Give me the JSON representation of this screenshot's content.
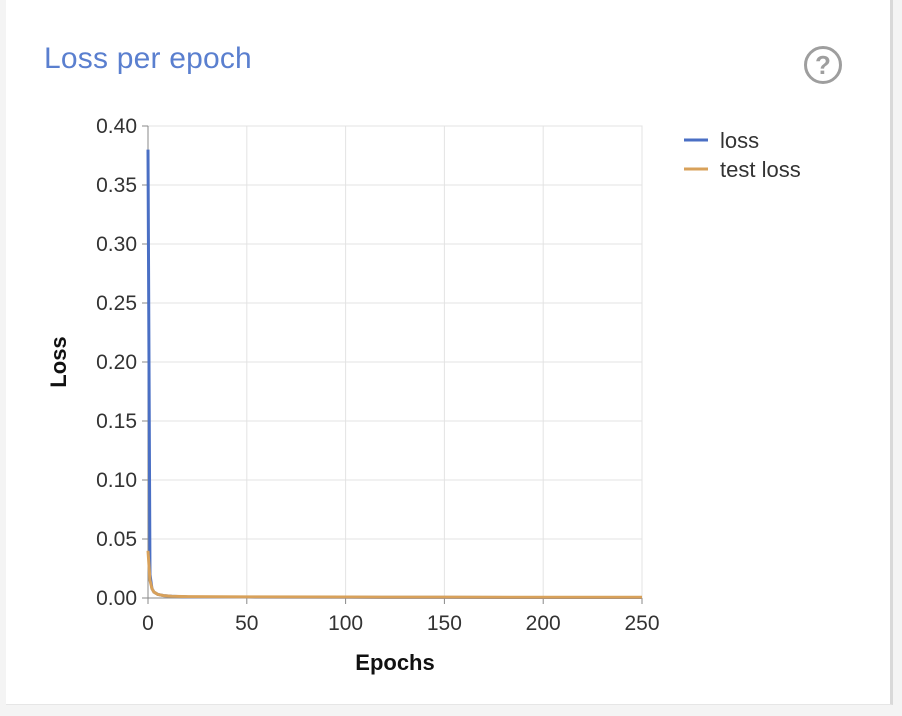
{
  "chart_data": {
    "type": "line",
    "title": "Loss per epoch",
    "xlabel": "Epochs",
    "ylabel": "Loss",
    "xlim": [
      0,
      250
    ],
    "ylim": [
      0,
      0.4
    ],
    "xticks": [
      "0",
      "50",
      "100",
      "150",
      "200",
      "250"
    ],
    "yticks": [
      "0.00",
      "0.05",
      "0.10",
      "0.15",
      "0.20",
      "0.25",
      "0.30",
      "0.35",
      "0.40"
    ],
    "grid": true,
    "legend_position": "top-right",
    "series": [
      {
        "name": "loss",
        "color": "#4a6fc4",
        "x": [
          0,
          1,
          2,
          3,
          5,
          8,
          12,
          20,
          50,
          100,
          150,
          200,
          250
        ],
        "y": [
          0.38,
          0.02,
          0.008,
          0.005,
          0.003,
          0.002,
          0.0015,
          0.001,
          0.0008,
          0.0006,
          0.0005,
          0.0004,
          0.0004
        ]
      },
      {
        "name": "test loss",
        "color": "#d8a15a",
        "x": [
          0,
          1,
          2,
          3,
          5,
          8,
          12,
          20,
          50,
          100,
          150,
          200,
          250
        ],
        "y": [
          0.04,
          0.015,
          0.008,
          0.005,
          0.003,
          0.002,
          0.0015,
          0.0012,
          0.001,
          0.0008,
          0.0007,
          0.0006,
          0.0006
        ]
      }
    ]
  },
  "help_icon": {
    "glyph": "?"
  }
}
